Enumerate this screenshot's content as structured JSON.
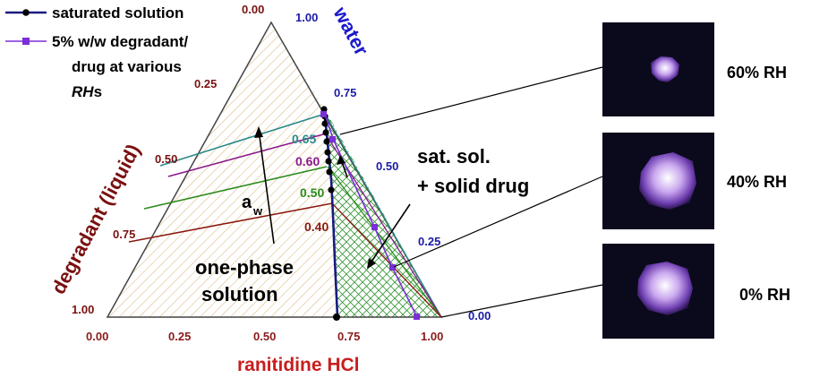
{
  "legend": {
    "saturated_label": "saturated solution",
    "degradant_label_line1": "5% w/w degradant/",
    "degradant_label_line2": "drug at various",
    "degradant_label_line3_italic": "RH",
    "degradant_label_line3_suffix": "s"
  },
  "axes": {
    "bottom_title": "ranitidine HCl",
    "left_title": "degradant (liquid)",
    "right_title": "water",
    "bottom_ticks": [
      "0.00",
      "0.25",
      "0.50",
      "0.75",
      "1.00"
    ],
    "left_ticks": [
      "0.00",
      "0.25",
      "0.50",
      "0.75",
      "1.00"
    ],
    "right_ticks": [
      "1.00",
      "0.75",
      "0.50",
      "0.25",
      "0.00"
    ]
  },
  "regions": {
    "one_phase_line1": "one-phase",
    "one_phase_line2": "solution",
    "two_phase_line1": "sat. sol.",
    "two_phase_line2": "+ solid drug"
  },
  "water_activity": {
    "symbol": "a",
    "subscript": "w",
    "lines": [
      {
        "label": "0.65",
        "color": "#2a8a8a"
      },
      {
        "label": "0.60",
        "color": "#8a1a8a"
      },
      {
        "label": "0.50",
        "color": "#2a8a1a"
      },
      {
        "label": "0.40",
        "color": "#8a1a10"
      }
    ]
  },
  "photos": [
    {
      "label": "60% RH"
    },
    {
      "label": "40% RH"
    },
    {
      "label": "0% RH"
    }
  ],
  "colors": {
    "saturated": "#000000",
    "degradant_series": "#7b2fd6",
    "solubility_line": "#1a1a80",
    "hatch_one_phase": "#d8b070",
    "hatch_two_phase": "#3a9a3a"
  }
}
